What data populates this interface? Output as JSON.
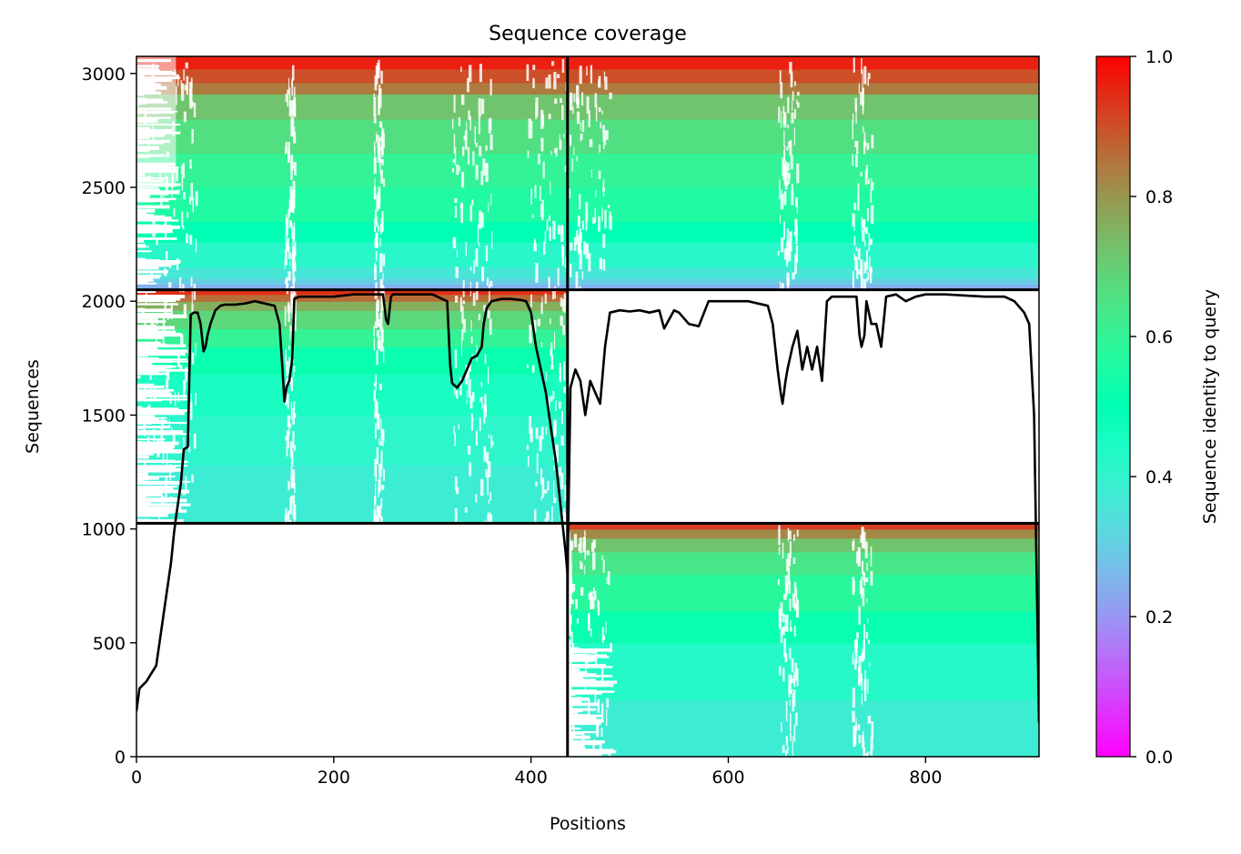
{
  "chart_data": {
    "type": "heatmap",
    "title": "Sequence coverage",
    "xlabel": "Positions",
    "ylabel": "Sequences",
    "colorbar_label": "Sequence identity to query",
    "colormap": "rainbow",
    "xlim": [
      0,
      915
    ],
    "ylim": [
      0,
      3075
    ],
    "xticks": [
      0,
      200,
      400,
      600,
      800
    ],
    "yticks": [
      0,
      500,
      1000,
      1500,
      2000,
      2500,
      3000
    ],
    "colorbar_ticks": [
      0.0,
      0.2,
      0.4,
      0.6,
      0.8,
      1.0
    ],
    "colorbar_tick_labels": [
      "0.0",
      "0.2",
      "0.4",
      "0.6",
      "0.8",
      "1.0"
    ],
    "grid": false,
    "chain_boundaries": {
      "positions": [
        437
      ],
      "sequences": [
        1025,
        2050
      ]
    },
    "blocks": [
      {
        "name": "paired",
        "x_range": [
          0,
          915
        ],
        "y_range": [
          2050,
          3075
        ],
        "identity_bands": [
          {
            "y": [
              2050,
              2075
            ],
            "identity": 0.24
          },
          {
            "y": [
              2075,
              2100
            ],
            "identity": 0.3
          },
          {
            "y": [
              2100,
              2150
            ],
            "identity": 0.36
          },
          {
            "y": [
              2150,
              2260
            ],
            "identity": 0.42
          },
          {
            "y": [
              2260,
              2350
            ],
            "identity": 0.5
          },
          {
            "y": [
              2350,
              2500
            ],
            "identity": 0.56
          },
          {
            "y": [
              2500,
              2650
            ],
            "identity": 0.6
          },
          {
            "y": [
              2650,
              2800
            ],
            "identity": 0.66
          },
          {
            "y": [
              2800,
              2910
            ],
            "identity": 0.72
          },
          {
            "y": [
              2910,
              2960
            ],
            "identity": 0.84
          },
          {
            "y": [
              2960,
              3020
            ],
            "identity": 0.9
          },
          {
            "y": [
              3020,
              3075
            ],
            "identity": 0.96
          }
        ]
      },
      {
        "name": "chain-1-unpaired",
        "x_range": [
          0,
          437
        ],
        "y_range": [
          1025,
          2050
        ],
        "identity_bands": [
          {
            "y": [
              1025,
              1280
            ],
            "identity": 0.38
          },
          {
            "y": [
              1280,
              1500
            ],
            "identity": 0.41
          },
          {
            "y": [
              1500,
              1680
            ],
            "identity": 0.45
          },
          {
            "y": [
              1680,
              1800
            ],
            "identity": 0.52
          },
          {
            "y": [
              1800,
              1880
            ],
            "identity": 0.6
          },
          {
            "y": [
              1880,
              1960
            ],
            "identity": 0.68
          },
          {
            "y": [
              1960,
              2000
            ],
            "identity": 0.76
          },
          {
            "y": [
              2000,
              2030
            ],
            "identity": 0.86
          },
          {
            "y": [
              2030,
              2050
            ],
            "identity": 0.94
          }
        ]
      },
      {
        "name": "chain-2-unpaired",
        "x_range": [
          437,
          915
        ],
        "y_range": [
          0,
          1025
        ],
        "identity_bands": [
          {
            "y": [
              0,
              250
            ],
            "identity": 0.38
          },
          {
            "y": [
              250,
              500
            ],
            "identity": 0.43
          },
          {
            "y": [
              500,
              640
            ],
            "identity": 0.52
          },
          {
            "y": [
              640,
              800
            ],
            "identity": 0.58
          },
          {
            "y": [
              800,
              900
            ],
            "identity": 0.64
          },
          {
            "y": [
              900,
              960
            ],
            "identity": 0.72
          },
          {
            "y": [
              960,
              1000
            ],
            "identity": 0.82
          },
          {
            "y": [
              1000,
              1025
            ],
            "identity": 0.92
          }
        ]
      }
    ],
    "coverage_line": {
      "x": [
        0,
        3,
        10,
        20,
        25,
        30,
        35,
        38,
        40,
        45,
        48,
        52,
        55,
        58,
        62,
        65,
        68,
        70,
        72,
        75,
        80,
        85,
        90,
        100,
        110,
        120,
        130,
        140,
        145,
        148,
        150,
        152,
        155,
        158,
        160,
        165,
        170,
        180,
        200,
        220,
        240,
        250,
        253,
        255,
        258,
        260,
        270,
        280,
        300,
        315,
        318,
        320,
        325,
        330,
        335,
        340,
        345,
        350,
        352,
        355,
        360,
        370,
        380,
        390,
        395,
        400,
        405,
        410,
        415,
        420,
        425,
        430,
        435,
        437,
        440,
        445,
        450,
        455,
        460,
        465,
        470,
        475,
        480,
        490,
        500,
        510,
        520,
        530,
        535,
        540,
        545,
        550,
        560,
        570,
        580,
        590,
        600,
        620,
        640,
        645,
        650,
        653,
        655,
        658,
        660,
        665,
        670,
        675,
        680,
        685,
        690,
        695,
        700,
        705,
        710,
        720,
        730,
        733,
        735,
        738,
        740,
        745,
        750,
        755,
        760,
        770,
        780,
        790,
        800,
        820,
        840,
        860,
        880,
        890,
        900,
        905,
        910,
        913,
        915
      ],
      "y": [
        200,
        300,
        330,
        400,
        550,
        700,
        850,
        980,
        1050,
        1200,
        1350,
        1360,
        1940,
        1950,
        1950,
        1900,
        1780,
        1800,
        1850,
        1900,
        1960,
        1980,
        1985,
        1985,
        1990,
        2000,
        1990,
        1980,
        1900,
        1700,
        1560,
        1620,
        1650,
        1750,
        2010,
        2020,
        2020,
        2020,
        2020,
        2030,
        2030,
        2030,
        1920,
        1900,
        2020,
        2030,
        2030,
        2030,
        2030,
        2000,
        1720,
        1640,
        1620,
        1650,
        1700,
        1750,
        1760,
        1800,
        1900,
        1970,
        2000,
        2010,
        2010,
        2005,
        2000,
        1950,
        1800,
        1700,
        1600,
        1450,
        1300,
        1100,
        900,
        800,
        1620,
        1700,
        1650,
        1500,
        1650,
        1600,
        1550,
        1800,
        1950,
        1960,
        1955,
        1960,
        1950,
        1960,
        1880,
        1920,
        1960,
        1950,
        1900,
        1890,
        2000,
        2000,
        2000,
        2000,
        1980,
        1900,
        1700,
        1600,
        1550,
        1650,
        1700,
        1800,
        1870,
        1700,
        1800,
        1700,
        1800,
        1650,
        2000,
        2020,
        2020,
        2020,
        2020,
        1850,
        1800,
        1850,
        2000,
        1900,
        1900,
        1800,
        2020,
        2030,
        2000,
        2020,
        2030,
        2030,
        2025,
        2020,
        2020,
        2000,
        1950,
        1900,
        1500,
        700,
        150
      ]
    }
  }
}
